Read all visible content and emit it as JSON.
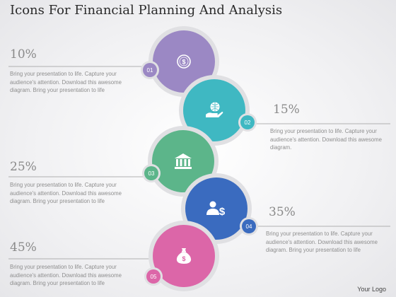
{
  "title": "Icons For Financial Planning And Analysis",
  "steps": [
    {
      "number": "01",
      "percent": "10%",
      "icon": "dollar-coin-icon",
      "color": "#9b88c4",
      "text": "Bring your presentation to life. Capture your\naudience's attention. Download this awesome\ndiagram. Bring your  presentation to life"
    },
    {
      "number": "02",
      "percent": "15%",
      "icon": "hand-globe-icon",
      "color": "#3fb8c2",
      "text": "Bring your presentation to life. Capture your\naudience's attention. Download this awesome\ndiagram."
    },
    {
      "number": "03",
      "percent": "25%",
      "icon": "bank-icon",
      "color": "#5cb58a",
      "text": "Bring your presentation to life. Capture your\naudience's attention. Download this awesome\ndiagram. Bring your  presentation to life"
    },
    {
      "number": "04",
      "percent": "35%",
      "icon": "person-dollar-icon",
      "color": "#3a6bbf",
      "text": "Bring your presentation to life. Capture your\naudience's attention. Download this awesome\ndiagram. Bring your  presentation to life"
    },
    {
      "number": "05",
      "percent": "45%",
      "icon": "money-bag-icon",
      "color": "#dc66a8",
      "text": "Bring your presentation to life. Capture your\naudience's attention. Download this awesome\ndiagram. Bring your  presentation to life"
    }
  ],
  "logo": "Your Logo"
}
